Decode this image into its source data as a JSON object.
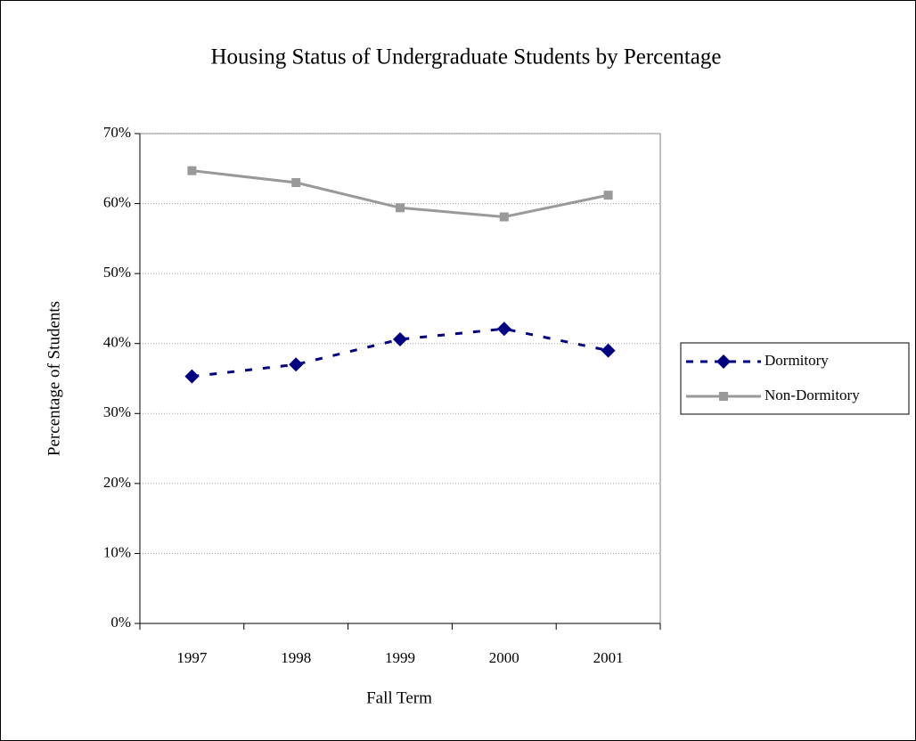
{
  "chart_data": {
    "type": "line",
    "title": "Housing Status of Undergraduate Students by Percentage",
    "x_label": "Fall Term",
    "y_label": "Percentage of Students",
    "categories": [
      "1997",
      "1998",
      "1999",
      "2000",
      "2001"
    ],
    "series": [
      {
        "name": "Dormitory",
        "color": "#000080",
        "dash": true,
        "marker": "diamond",
        "values": [
          35.3,
          37.0,
          40.6,
          42.1,
          39.0
        ]
      },
      {
        "name": "Non-Dormitory",
        "color": "#999999",
        "dash": false,
        "marker": "square",
        "values": [
          64.7,
          63.0,
          59.4,
          58.1,
          61.2
        ]
      }
    ],
    "ylim": [
      0,
      70
    ],
    "yticks": [
      {
        "value": 0,
        "label": "0%"
      },
      {
        "value": 10,
        "label": "10%"
      },
      {
        "value": 20,
        "label": "20%"
      },
      {
        "value": 30,
        "label": "30%"
      },
      {
        "value": 40,
        "label": "40%"
      },
      {
        "value": 50,
        "label": "50%"
      },
      {
        "value": 60,
        "label": "60%"
      },
      {
        "value": 70,
        "label": "70%"
      }
    ],
    "grid": true,
    "legend": "right"
  }
}
